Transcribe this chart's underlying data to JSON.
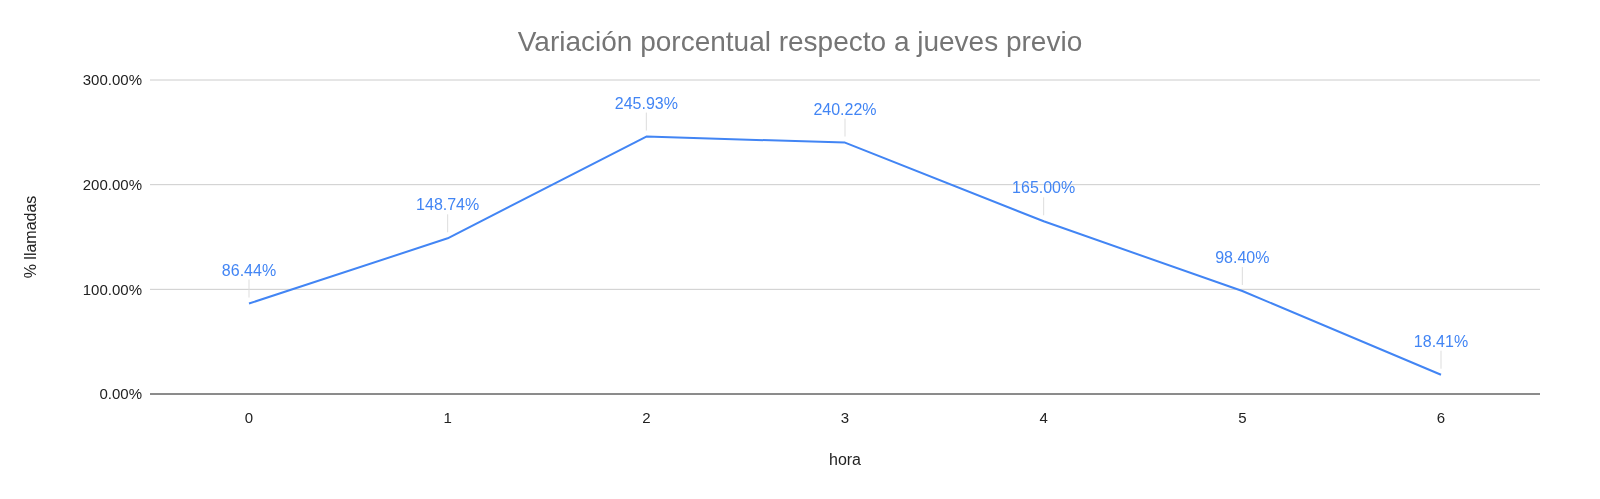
{
  "chart_data": {
    "type": "line",
    "title": "Variación porcentual respecto a jueves previo",
    "xlabel": "hora",
    "ylabel": "%  llamadas",
    "categories": [
      "0",
      "1",
      "2",
      "3",
      "4",
      "5",
      "6"
    ],
    "series": [
      {
        "color": "#4285f4",
        "values": [
          86.44,
          148.74,
          245.93,
          240.22,
          165.0,
          98.4,
          18.41
        ],
        "value_labels": [
          "86.44%",
          "148.74%",
          "245.93%",
          "240.22%",
          "165.00%",
          "98.40%",
          "18.41%"
        ]
      }
    ],
    "ylim": [
      0,
      300
    ],
    "yticks": [
      {
        "value": 0,
        "label": "0.00%"
      },
      {
        "value": 100,
        "label": "100.00%"
      },
      {
        "value": 200,
        "label": "200.00%"
      },
      {
        "value": 300,
        "label": "300.00%"
      }
    ],
    "grid": "y",
    "legend": false,
    "marker": "none",
    "line_style": "solid"
  }
}
